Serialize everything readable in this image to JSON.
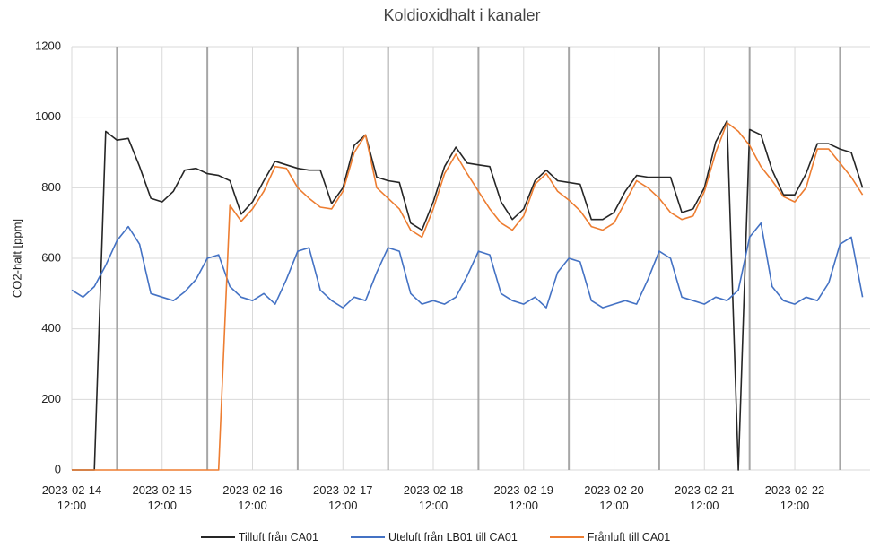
{
  "chart_data": {
    "type": "line",
    "title": "Koldioxidhalt i kanaler",
    "y_label": "CO2-halt [ppm]",
    "x": [
      "2023-02-14 12:00",
      "2023-02-14 15:00",
      "2023-02-14 18:00",
      "2023-02-14 21:00",
      "2023-02-15 00:00",
      "2023-02-15 03:00",
      "2023-02-15 06:00",
      "2023-02-15 09:00",
      "2023-02-15 12:00",
      "2023-02-15 15:00",
      "2023-02-15 18:00",
      "2023-02-15 21:00",
      "2023-02-16 00:00",
      "2023-02-16 03:00",
      "2023-02-16 06:00",
      "2023-02-16 09:00",
      "2023-02-16 12:00",
      "2023-02-16 15:00",
      "2023-02-16 18:00",
      "2023-02-16 21:00",
      "2023-02-17 00:00",
      "2023-02-17 03:00",
      "2023-02-17 06:00",
      "2023-02-17 09:00",
      "2023-02-17 12:00",
      "2023-02-17 15:00",
      "2023-02-17 18:00",
      "2023-02-17 21:00",
      "2023-02-18 00:00",
      "2023-02-18 03:00",
      "2023-02-18 06:00",
      "2023-02-18 09:00",
      "2023-02-18 12:00",
      "2023-02-18 15:00",
      "2023-02-18 18:00",
      "2023-02-18 21:00",
      "2023-02-19 00:00",
      "2023-02-19 03:00",
      "2023-02-19 06:00",
      "2023-02-19 09:00",
      "2023-02-19 12:00",
      "2023-02-19 15:00",
      "2023-02-19 18:00",
      "2023-02-19 21:00",
      "2023-02-20 00:00",
      "2023-02-20 03:00",
      "2023-02-20 06:00",
      "2023-02-20 09:00",
      "2023-02-20 12:00",
      "2023-02-20 15:00",
      "2023-02-20 18:00",
      "2023-02-20 21:00",
      "2023-02-21 00:00",
      "2023-02-21 03:00",
      "2023-02-21 06:00",
      "2023-02-21 09:00",
      "2023-02-21 12:00",
      "2023-02-21 15:00",
      "2023-02-21 18:00",
      "2023-02-21 21:00",
      "2023-02-22 00:00",
      "2023-02-22 03:00",
      "2023-02-22 06:00",
      "2023-02-22 09:00",
      "2023-02-22 12:00",
      "2023-02-22 15:00",
      "2023-02-22 18:00",
      "2023-02-22 21:00",
      "2023-02-23 00:00",
      "2023-02-23 03:00",
      "2023-02-23 06:00"
    ],
    "series": [
      {
        "name": "Tilluft från CA01",
        "color": "#262626",
        "values": [
          0,
          0,
          0,
          960,
          935,
          940,
          860,
          770,
          760,
          790,
          850,
          855,
          840,
          835,
          820,
          725,
          760,
          820,
          875,
          865,
          855,
          850,
          850,
          755,
          800,
          920,
          950,
          830,
          820,
          815,
          700,
          680,
          760,
          860,
          915,
          870,
          865,
          860,
          760,
          710,
          740,
          820,
          850,
          820,
          815,
          810,
          710,
          710,
          730,
          790,
          835,
          830,
          830,
          830,
          730,
          740,
          800,
          930,
          990,
          0,
          965,
          950,
          850,
          780,
          780,
          840,
          925,
          925,
          910,
          900,
          800
        ]
      },
      {
        "name": "Uteluft från LB01 till CA01",
        "color": "#4472c4",
        "values": [
          510,
          490,
          520,
          580,
          650,
          690,
          640,
          500,
          490,
          480,
          505,
          540,
          600,
          610,
          520,
          490,
          480,
          500,
          470,
          540,
          620,
          630,
          510,
          480,
          460,
          490,
          480,
          560,
          630,
          620,
          500,
          470,
          480,
          470,
          490,
          550,
          620,
          610,
          500,
          480,
          470,
          490,
          460,
          560,
          600,
          590,
          480,
          460,
          470,
          480,
          470,
          540,
          620,
          600,
          490,
          480,
          470,
          490,
          480,
          510,
          660,
          700,
          520,
          480,
          470,
          490,
          480,
          530,
          640,
          660,
          490
        ]
      },
      {
        "name": "Frånluft till CA01",
        "color": "#ed7d31",
        "values": [
          0,
          0,
          0,
          0,
          0,
          0,
          0,
          0,
          0,
          0,
          0,
          0,
          0,
          0,
          750,
          705,
          740,
          790,
          860,
          855,
          800,
          770,
          745,
          740,
          790,
          900,
          950,
          800,
          770,
          740,
          680,
          660,
          740,
          840,
          895,
          840,
          790,
          740,
          700,
          680,
          720,
          810,
          840,
          790,
          765,
          735,
          690,
          680,
          700,
          760,
          820,
          800,
          770,
          730,
          710,
          720,
          790,
          900,
          985,
          960,
          920,
          860,
          820,
          775,
          760,
          800,
          910,
          910,
          870,
          830,
          780
        ]
      }
    ],
    "xlim": [
      "2023-02-14 12:00",
      "2023-02-23 08:00"
    ],
    "xticks": [
      "2023-02-14 12:00",
      "2023-02-15 12:00",
      "2023-02-16 12:00",
      "2023-02-17 12:00",
      "2023-02-18 12:00",
      "2023-02-19 12:00",
      "2023-02-20 12:00",
      "2023-02-21 12:00",
      "2023-02-22 12:00"
    ],
    "ylim": [
      0,
      1200
    ],
    "yticks": [
      0,
      200,
      400,
      600,
      800,
      1000,
      1200
    ],
    "grid": true,
    "legend": "bottom"
  }
}
